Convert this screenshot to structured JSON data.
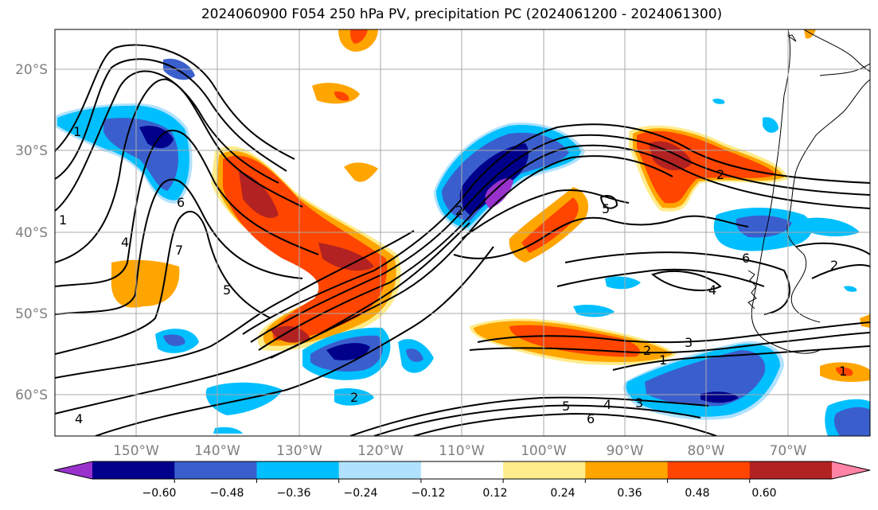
{
  "title": "2024060900 F054 250 hPa PV, precipitation PC (2024061200 - 2024061300)",
  "lat_ticks": [
    "20°S",
    "30°S",
    "40°S",
    "50°S",
    "60°S"
  ],
  "lon_ticks": [
    "150°W",
    "140°W",
    "130°W",
    "120°W",
    "110°W",
    "100°W",
    "90°W",
    "80°W",
    "70°W"
  ],
  "colorbar": {
    "labels": [
      "−0.60",
      "−0.48",
      "−0.36",
      "−0.24",
      "−0.12",
      "0.12",
      "0.24",
      "0.36",
      "0.48",
      "0.60"
    ],
    "colors": [
      "#9932cc",
      "#00008b",
      "#3a5fcd",
      "#00bfff",
      "#b0e2ff",
      "#ffffff",
      "#ffec8b",
      "#ffa500",
      "#ff4500",
      "#b22222",
      "#ff83a5"
    ]
  },
  "contour_labels": [
    "1",
    "1",
    "6",
    "4",
    "7",
    "5",
    "2",
    "5",
    "2",
    "3",
    "2",
    "1",
    "5",
    "4",
    "3",
    "6",
    "2",
    "4",
    "6",
    "2",
    "1",
    "4"
  ]
}
